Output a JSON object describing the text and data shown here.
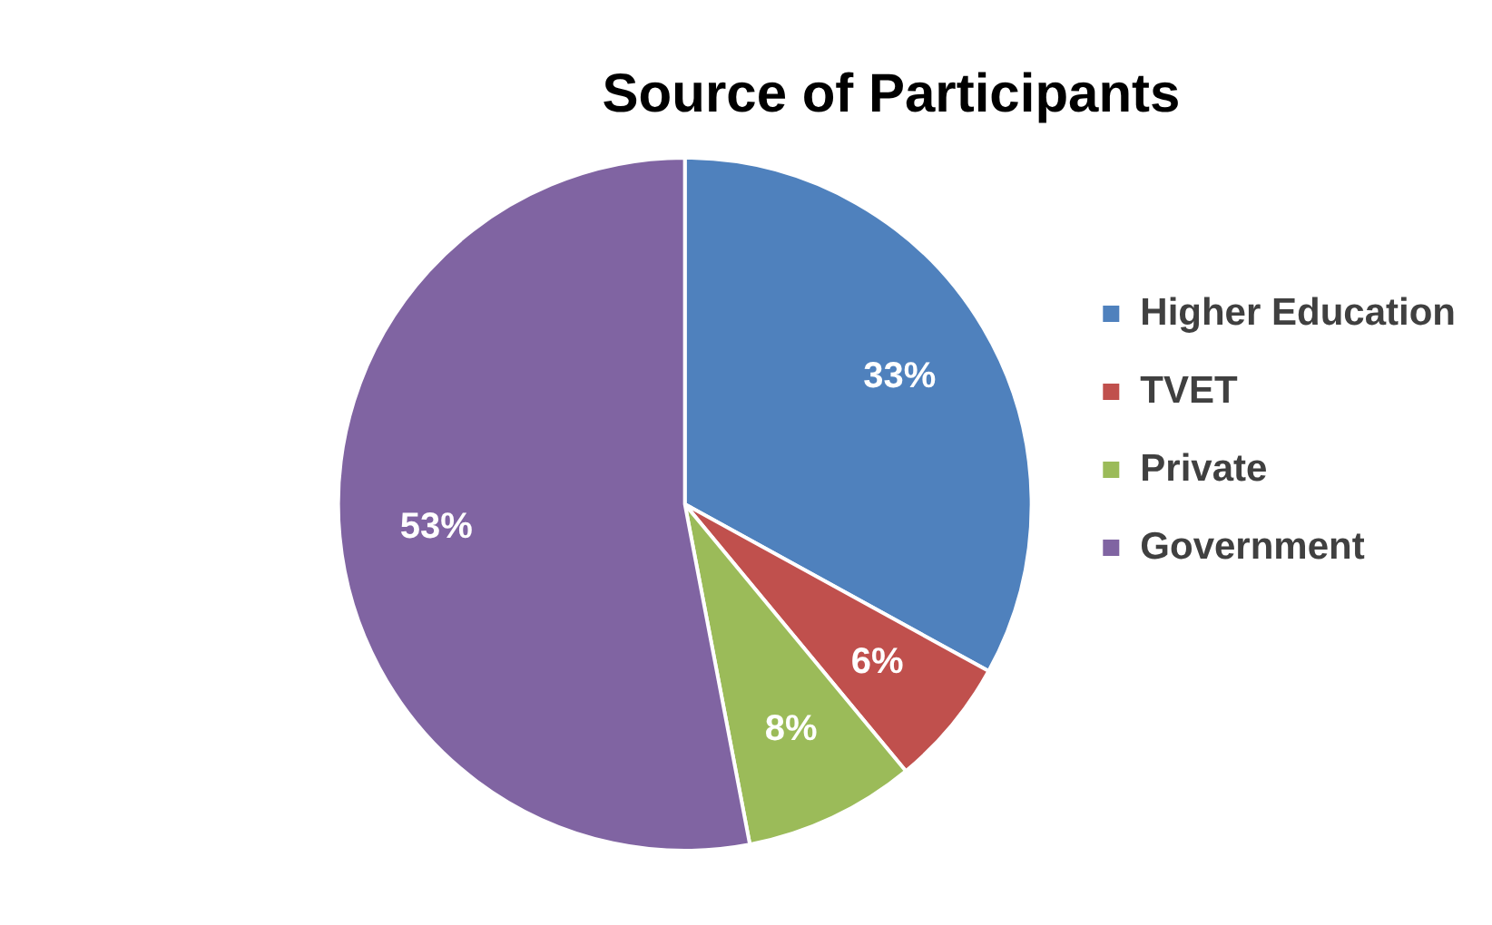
{
  "chart_data": {
    "type": "pie",
    "title": "Source of Participants",
    "categories": [
      "Higher Education",
      "TVET",
      "Private",
      "Government"
    ],
    "values": [
      33,
      6,
      8,
      53
    ],
    "colors": [
      "#4f81bd",
      "#c0504d",
      "#9bbb59",
      "#8064a2"
    ],
    "value_labels": [
      "33%",
      "6%",
      "8%",
      "53%"
    ],
    "legend": "right"
  }
}
